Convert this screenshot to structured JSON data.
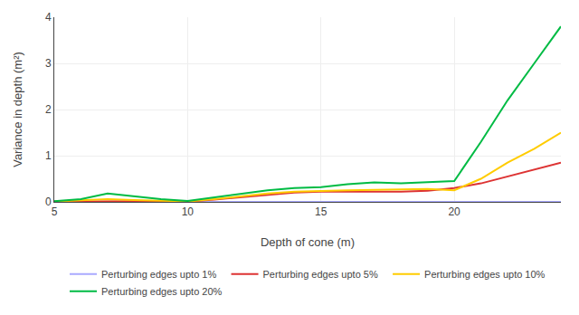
{
  "chart_data": {
    "type": "line",
    "xlabel": "Depth of cone (m)",
    "ylabel": "Variance in depth (m²)",
    "x": [
      5,
      6,
      7,
      8,
      9,
      10,
      11,
      12,
      13,
      14,
      15,
      16,
      17,
      18,
      19,
      20,
      21,
      22,
      23,
      24
    ],
    "series": [
      {
        "name": "Perturbing edges upto 1%",
        "color": "#aaaaff",
        "values": [
          0.002,
          0.002,
          0.002,
          0.002,
          0.002,
          0.002,
          0.002,
          0.002,
          0.002,
          0.002,
          0.002,
          0.002,
          0.002,
          0.002,
          0.002,
          0.002,
          0.002,
          0.002,
          0.002,
          0.002
        ]
      },
      {
        "name": "Perturbing edges upto 5%",
        "color": "#dd3333",
        "values": [
          0.005,
          0.01,
          0.012,
          0.015,
          0.01,
          0.005,
          0.05,
          0.1,
          0.16,
          0.2,
          0.22,
          0.22,
          0.22,
          0.22,
          0.24,
          0.3,
          0.4,
          0.55,
          0.7,
          0.85
        ]
      },
      {
        "name": "Perturbing edges upto 10%",
        "color": "#ffcc00",
        "values": [
          0.01,
          0.03,
          0.06,
          0.04,
          0.02,
          0.01,
          0.06,
          0.12,
          0.18,
          0.22,
          0.24,
          0.25,
          0.26,
          0.27,
          0.28,
          0.25,
          0.5,
          0.85,
          1.15,
          1.5
        ]
      },
      {
        "name": "Perturbing edges upto 20%",
        "color": "#00bb44",
        "values": [
          0.015,
          0.06,
          0.18,
          0.12,
          0.06,
          0.02,
          0.1,
          0.18,
          0.25,
          0.3,
          0.32,
          0.38,
          0.42,
          0.4,
          0.42,
          0.45,
          1.3,
          2.2,
          3.0,
          3.8
        ]
      }
    ],
    "xlim": [
      5,
      24
    ],
    "xticks": [
      5,
      10,
      15,
      20
    ],
    "ylim": [
      0,
      4
    ],
    "yticks": [
      0,
      1,
      2,
      3,
      4
    ],
    "grid": true,
    "legend": "bottom"
  }
}
